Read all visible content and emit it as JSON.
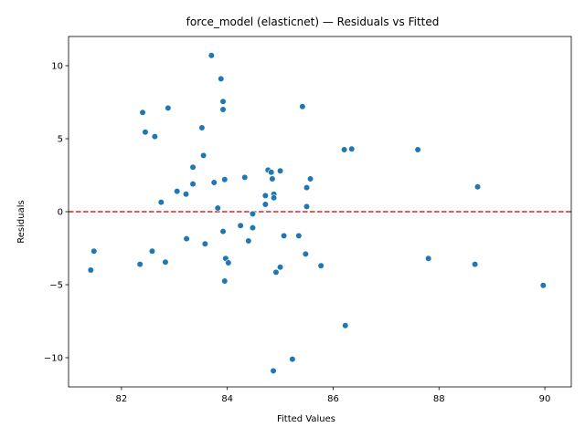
{
  "chart_data": {
    "type": "scatter",
    "title": "force_model (elasticnet) — Residuals vs Fitted",
    "xlabel": "Fitted Values",
    "ylabel": "Residuals",
    "xlim": [
      81.0,
      90.5
    ],
    "ylim": [
      -12.0,
      12.0
    ],
    "xticks": [
      82,
      84,
      86,
      88,
      90
    ],
    "yticks": [
      -10,
      -5,
      0,
      5,
      10
    ],
    "grid": false,
    "reference_line": {
      "y": 0,
      "color": "#d62728",
      "style": "dashed"
    },
    "point_color": "#1f77b4",
    "points": [
      [
        83.7,
        10.7
      ],
      [
        83.88,
        9.1
      ],
      [
        83.92,
        7.55
      ],
      [
        83.92,
        7.0
      ],
      [
        82.88,
        7.1
      ],
      [
        82.4,
        6.8
      ],
      [
        85.42,
        7.2
      ],
      [
        83.52,
        5.75
      ],
      [
        82.45,
        5.45
      ],
      [
        82.63,
        5.15
      ],
      [
        83.55,
        3.85
      ],
      [
        83.35,
        3.05
      ],
      [
        84.77,
        2.85
      ],
      [
        85.0,
        2.8
      ],
      [
        84.83,
        2.7
      ],
      [
        84.33,
        2.35
      ],
      [
        84.85,
        2.25
      ],
      [
        85.57,
        2.25
      ],
      [
        83.95,
        2.2
      ],
      [
        86.21,
        4.25
      ],
      [
        86.35,
        4.3
      ],
      [
        87.6,
        4.25
      ],
      [
        83.35,
        1.9
      ],
      [
        83.75,
        2.0
      ],
      [
        85.5,
        1.65
      ],
      [
        88.73,
        1.7
      ],
      [
        83.05,
        1.4
      ],
      [
        83.22,
        1.2
      ],
      [
        84.72,
        1.1
      ],
      [
        84.88,
        1.2
      ],
      [
        84.88,
        0.95
      ],
      [
        82.75,
        0.65
      ],
      [
        84.72,
        0.5
      ],
      [
        85.5,
        0.35
      ],
      [
        83.82,
        0.25
      ],
      [
        84.48,
        -0.15
      ],
      [
        84.25,
        -0.95
      ],
      [
        84.48,
        -1.1
      ],
      [
        83.92,
        -1.35
      ],
      [
        85.07,
        -1.65
      ],
      [
        85.35,
        -1.65
      ],
      [
        83.23,
        -1.85
      ],
      [
        84.4,
        -2.0
      ],
      [
        83.58,
        -2.2
      ],
      [
        81.48,
        -2.7
      ],
      [
        82.58,
        -2.7
      ],
      [
        85.48,
        -2.9
      ],
      [
        87.8,
        -3.2
      ],
      [
        83.97,
        -3.2
      ],
      [
        84.02,
        -3.5
      ],
      [
        82.83,
        -3.45
      ],
      [
        82.35,
        -3.6
      ],
      [
        88.68,
        -3.6
      ],
      [
        85.77,
        -3.7
      ],
      [
        85.0,
        -3.8
      ],
      [
        81.42,
        -4.0
      ],
      [
        84.92,
        -4.15
      ],
      [
        83.95,
        -4.75
      ],
      [
        89.97,
        -5.05
      ],
      [
        86.23,
        -7.8
      ],
      [
        85.23,
        -10.1
      ],
      [
        84.87,
        -10.9
      ]
    ]
  }
}
